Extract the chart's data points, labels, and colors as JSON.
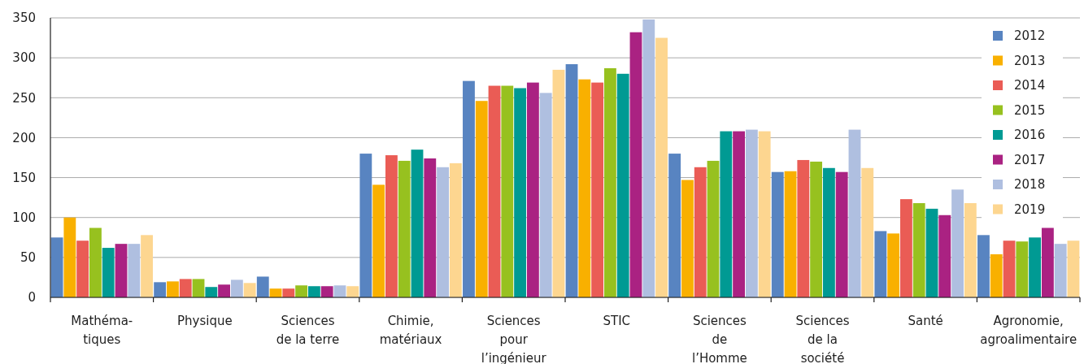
{
  "chart_data": {
    "type": "bar",
    "categories": [
      "Mathéma-\ntiques",
      "Physique",
      "Sciences\nde la terre",
      "Chimie,\nmatériaux",
      "Sciences\npour\nl’ingénieur",
      "STIC",
      "Sciences\nde\nl’Homme",
      "Sciences\nde la\nsociété",
      "Santé",
      "Agronomie,\nagroalimentaire"
    ],
    "series": [
      {
        "name": "2012",
        "color": "#5884c1",
        "values": [
          75,
          19,
          26,
          180,
          271,
          292,
          180,
          157,
          83,
          78
        ]
      },
      {
        "name": "2013",
        "color": "#f9b000",
        "values": [
          100,
          20,
          11,
          141,
          246,
          273,
          147,
          158,
          80,
          54
        ]
      },
      {
        "name": "2014",
        "color": "#ea5c55",
        "values": [
          71,
          23,
          11,
          178,
          265,
          269,
          163,
          172,
          123,
          71
        ]
      },
      {
        "name": "2015",
        "color": "#97c11f",
        "values": [
          87,
          23,
          15,
          171,
          265,
          287,
          171,
          170,
          118,
          70
        ]
      },
      {
        "name": "2016",
        "color": "#009a93",
        "values": [
          62,
          13,
          14,
          185,
          262,
          280,
          208,
          162,
          111,
          75
        ]
      },
      {
        "name": "2017",
        "color": "#aa2282",
        "values": [
          67,
          16,
          14,
          174,
          269,
          332,
          208,
          157,
          103,
          87
        ]
      },
      {
        "name": "2018",
        "color": "#afbfe0",
        "values": [
          67,
          22,
          15,
          163,
          256,
          348,
          210,
          210,
          135,
          67
        ]
      },
      {
        "name": "2019",
        "color": "#fdd690",
        "values": [
          78,
          18,
          14,
          168,
          285,
          325,
          208,
          162,
          118,
          71
        ]
      }
    ],
    "ylim": [
      0,
      350
    ],
    "yticks": [
      0,
      50,
      100,
      150,
      200,
      250,
      300,
      350
    ],
    "grid": "y",
    "legend": "top right"
  }
}
